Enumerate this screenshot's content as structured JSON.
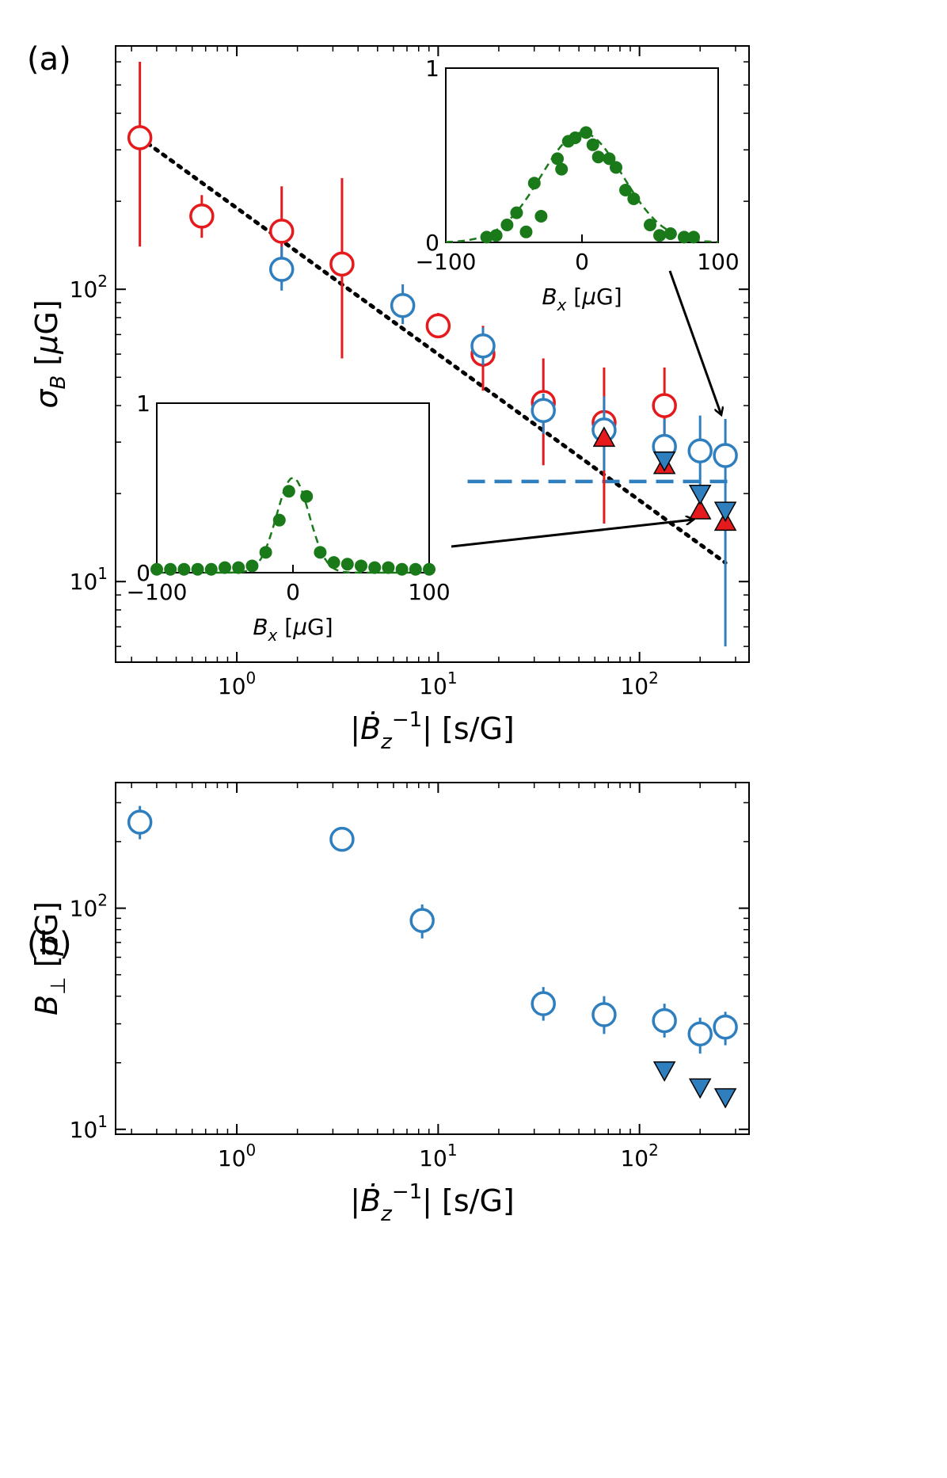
{
  "figure": {
    "panel_a_label": "(a)",
    "panel_b_label": "(b)"
  },
  "colors": {
    "red": "#e41a1c",
    "blue": "#2f7fbf",
    "green": "#1a7a1a",
    "black": "#000000"
  },
  "chart_data": [
    {
      "id": "panel-a",
      "type": "scatter",
      "title": "",
      "xlabel": "|Ḃz⁻¹| [s/G]",
      "ylabel": "σB [μG]",
      "xscale": "log",
      "yscale": "log",
      "xlim": [
        0.25,
        350
      ],
      "ylim": [
        5.3,
        680
      ],
      "xticks": [
        {
          "value": 1,
          "base": "10",
          "exp": "0"
        },
        {
          "value": 10,
          "base": "10",
          "exp": "1"
        },
        {
          "value": 100,
          "base": "10",
          "exp": "2"
        }
      ],
      "yticks": [
        {
          "value": 10,
          "base": "10",
          "exp": "1"
        },
        {
          "value": 100,
          "base": "10",
          "exp": "2"
        }
      ],
      "series": [
        {
          "marker": "open-circle",
          "color": "#e41a1c",
          "points": [
            {
              "x": 0.33,
              "y": 330,
              "ylo": 140,
              "yhi": 600
            },
            {
              "x": 0.67,
              "y": 178,
              "ylo": 150,
              "yhi": 210
            },
            {
              "x": 1.67,
              "y": 158,
              "ylo": 105,
              "yhi": 225
            },
            {
              "x": 3.33,
              "y": 122,
              "ylo": 58,
              "yhi": 240
            },
            {
              "x": 10,
              "y": 75,
              "ylo": 68,
              "yhi": 83
            },
            {
              "x": 16.7,
              "y": 60,
              "ylo": 45,
              "yhi": 75
            },
            {
              "x": 33.3,
              "y": 41,
              "ylo": 25,
              "yhi": 58
            },
            {
              "x": 66.7,
              "y": 35,
              "ylo": 15.8,
              "yhi": 54
            },
            {
              "x": 133,
              "y": 40,
              "ylo": 29,
              "yhi": 54
            }
          ]
        },
        {
          "marker": "open-circle",
          "color": "#2f7fbf",
          "points": [
            {
              "x": 1.67,
              "y": 117,
              "ylo": 99,
              "yhi": 140
            },
            {
              "x": 6.67,
              "y": 88,
              "ylo": 76,
              "yhi": 104
            },
            {
              "x": 16.7,
              "y": 64,
              "ylo": 55,
              "yhi": 74
            },
            {
              "x": 33.3,
              "y": 38.5,
              "ylo": 32,
              "yhi": 44
            },
            {
              "x": 66.7,
              "y": 33,
              "ylo": 24,
              "yhi": 43
            },
            {
              "x": 133,
              "y": 29,
              "ylo": 24,
              "yhi": 36
            },
            {
              "x": 200,
              "y": 28,
              "ylo": 17,
              "yhi": 37
            },
            {
              "x": 267,
              "y": 27,
              "ylo": 6,
              "yhi": 36
            }
          ]
        },
        {
          "marker": "filled-triangle-up",
          "color": "#e41a1c",
          "points": [
            {
              "x": 66.7,
              "y": 31
            },
            {
              "x": 133,
              "y": 25
            },
            {
              "x": 200,
              "y": 17.5
            },
            {
              "x": 267,
              "y": 16
            }
          ]
        },
        {
          "marker": "filled-triangle-down",
          "color": "#2f7fbf",
          "points": [
            {
              "x": 133,
              "y": 26
            },
            {
              "x": 200,
              "y": 20
            },
            {
              "x": 267,
              "y": 17.5
            }
          ]
        }
      ],
      "lines": [
        {
          "style": "dotted",
          "color": "#000000",
          "x": [
            0.33,
            267
          ],
          "y": [
            330,
            11.6
          ]
        },
        {
          "style": "dashed",
          "color": "#2f7fbf",
          "x": [
            14,
            280
          ],
          "y": [
            22,
            22
          ]
        }
      ],
      "insets": [
        {
          "id": "inset-top",
          "type": "scatter",
          "xlabel": "Bx [μG]",
          "xlim": [
            -100,
            100
          ],
          "ylim": [
            0,
            1
          ],
          "xticks": [
            "−100",
            "0",
            "100"
          ],
          "yticks": [
            "0",
            "1"
          ],
          "points": [
            {
              "x": -70,
              "y": 0.03
            },
            {
              "x": -63,
              "y": 0.04
            },
            {
              "x": -55,
              "y": 0.1
            },
            {
              "x": -48,
              "y": 0.17
            },
            {
              "x": -41,
              "y": 0.06
            },
            {
              "x": -35,
              "y": 0.34
            },
            {
              "x": -30,
              "y": 0.15
            },
            {
              "x": -18,
              "y": 0.48
            },
            {
              "x": -15,
              "y": 0.42
            },
            {
              "x": -10,
              "y": 0.58
            },
            {
              "x": -5,
              "y": 0.6
            },
            {
              "x": 3,
              "y": 0.63
            },
            {
              "x": 8,
              "y": 0.56
            },
            {
              "x": 12,
              "y": 0.49
            },
            {
              "x": 20,
              "y": 0.48
            },
            {
              "x": 25,
              "y": 0.43
            },
            {
              "x": 32,
              "y": 0.3
            },
            {
              "x": 38,
              "y": 0.25
            },
            {
              "x": 50,
              "y": 0.1
            },
            {
              "x": 57,
              "y": 0.04
            },
            {
              "x": 65,
              "y": 0.05
            },
            {
              "x": 75,
              "y": 0.03
            },
            {
              "x": 82,
              "y": 0.03
            }
          ],
          "fit": {
            "type": "gaussian",
            "amplitude": 0.63,
            "center": 0,
            "sigma": 30
          }
        },
        {
          "id": "inset-bottom",
          "type": "scatter",
          "xlabel": "Bx [μG]",
          "xlim": [
            -100,
            100
          ],
          "ylim": [
            0,
            1
          ],
          "xticks": [
            "−100",
            "0",
            "100"
          ],
          "yticks": [
            "0",
            "1"
          ],
          "points": [
            {
              "x": -100,
              "y": 0.02
            },
            {
              "x": -90,
              "y": 0.02
            },
            {
              "x": -80,
              "y": 0.02
            },
            {
              "x": -70,
              "y": 0.02
            },
            {
              "x": -60,
              "y": 0.02
            },
            {
              "x": -50,
              "y": 0.03
            },
            {
              "x": -40,
              "y": 0.03
            },
            {
              "x": -30,
              "y": 0.04
            },
            {
              "x": -20,
              "y": 0.12
            },
            {
              "x": -10,
              "y": 0.31
            },
            {
              "x": -3,
              "y": 0.48
            },
            {
              "x": 10,
              "y": 0.45
            },
            {
              "x": 20,
              "y": 0.12
            },
            {
              "x": 30,
              "y": 0.06
            },
            {
              "x": 40,
              "y": 0.05
            },
            {
              "x": 50,
              "y": 0.04
            },
            {
              "x": 60,
              "y": 0.03
            },
            {
              "x": 70,
              "y": 0.03
            },
            {
              "x": 80,
              "y": 0.02
            },
            {
              "x": 90,
              "y": 0.02
            },
            {
              "x": 100,
              "y": 0.02
            }
          ],
          "fit": {
            "type": "gaussian",
            "amplitude": 0.56,
            "center": 0,
            "sigma": 12
          }
        }
      ]
    },
    {
      "id": "panel-b",
      "type": "scatter",
      "title": "",
      "xlabel": "|Ḃz⁻¹| [s/G]",
      "ylabel": "B⊥ [μG]",
      "xscale": "log",
      "yscale": "log",
      "xlim": [
        0.25,
        350
      ],
      "ylim": [
        9.5,
        370
      ],
      "xticks": [
        {
          "value": 1,
          "base": "10",
          "exp": "0"
        },
        {
          "value": 10,
          "base": "10",
          "exp": "1"
        },
        {
          "value": 100,
          "base": "10",
          "exp": "2"
        }
      ],
      "yticks": [
        {
          "value": 10,
          "base": "10",
          "exp": "1"
        },
        {
          "value": 100,
          "base": "10",
          "exp": "2"
        }
      ],
      "series": [
        {
          "marker": "open-circle",
          "color": "#2f7fbf",
          "points": [
            {
              "x": 0.33,
              "y": 245,
              "ylo": 205,
              "yhi": 290
            },
            {
              "x": 3.33,
              "y": 205,
              "ylo": 190,
              "yhi": 220
            },
            {
              "x": 8.33,
              "y": 88,
              "ylo": 73,
              "yhi": 104
            },
            {
              "x": 33.3,
              "y": 37,
              "ylo": 31,
              "yhi": 44
            },
            {
              "x": 66.7,
              "y": 33,
              "ylo": 27,
              "yhi": 40
            },
            {
              "x": 133,
              "y": 31,
              "ylo": 26,
              "yhi": 37
            },
            {
              "x": 200,
              "y": 27,
              "ylo": 22,
              "yhi": 32
            },
            {
              "x": 267,
              "y": 29,
              "ylo": 24,
              "yhi": 34
            }
          ]
        },
        {
          "marker": "filled-triangle-down",
          "color": "#2f7fbf",
          "points": [
            {
              "x": 133,
              "y": 18.5
            },
            {
              "x": 200,
              "y": 15.5
            },
            {
              "x": 267,
              "y": 14
            }
          ]
        }
      ]
    }
  ]
}
